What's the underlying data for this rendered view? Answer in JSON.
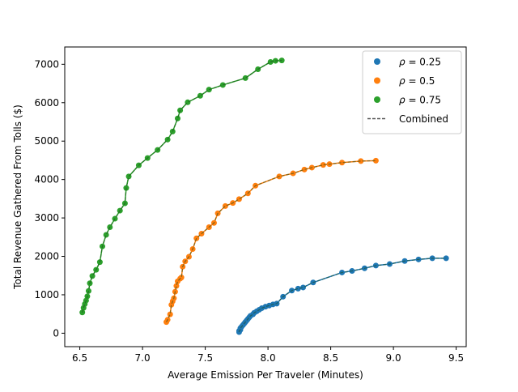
{
  "chart_data": {
    "type": "scatter",
    "title": "",
    "xlabel": "Average Emission Per Traveler (Minutes)",
    "ylabel": "Total Revenue Gathered From Tolls ($)",
    "xlim": [
      6.38,
      9.58
    ],
    "ylim": [
      -350,
      7450
    ],
    "xticks": [
      6.5,
      7.0,
      7.5,
      8.0,
      8.5,
      9.0,
      9.5
    ],
    "xtick_labels": [
      "6.5",
      "7.0",
      "7.5",
      "8.0",
      "8.5",
      "9.0",
      "9.5"
    ],
    "yticks": [
      0,
      1000,
      2000,
      3000,
      4000,
      5000,
      6000,
      7000
    ],
    "ytick_labels": [
      "0",
      "1000",
      "2000",
      "3000",
      "4000",
      "5000",
      "6000",
      "7000"
    ],
    "grid": false,
    "legend_position": "top-right",
    "legend": {
      "entries": [
        {
          "label_prefix": "ρ",
          "label_suffix": " = 0.25",
          "color": "#1f77b4",
          "marker": "circle"
        },
        {
          "label_prefix": "ρ",
          "label_suffix": " = 0.5",
          "color": "#ff7f0e",
          "marker": "circle"
        },
        {
          "label_prefix": "ρ",
          "label_suffix": " = 0.75",
          "color": "#2ca02c",
          "marker": "circle"
        },
        {
          "label": "Combined",
          "color": "#555555",
          "marker": "dashed-line"
        }
      ]
    },
    "series": [
      {
        "name": "ρ = 0.25",
        "color": "#1f77b4",
        "points": [
          [
            7.77,
            30
          ],
          [
            7.77,
            60
          ],
          [
            7.78,
            90
          ],
          [
            7.78,
            130
          ],
          [
            7.79,
            170
          ],
          [
            7.8,
            210
          ],
          [
            7.81,
            250
          ],
          [
            7.82,
            290
          ],
          [
            7.83,
            330
          ],
          [
            7.84,
            370
          ],
          [
            7.85,
            410
          ],
          [
            7.86,
            450
          ],
          [
            7.88,
            490
          ],
          [
            7.89,
            530
          ],
          [
            7.91,
            570
          ],
          [
            7.93,
            610
          ],
          [
            7.95,
            650
          ],
          [
            7.98,
            690
          ],
          [
            8.01,
            720
          ],
          [
            8.04,
            750
          ],
          [
            8.07,
            770
          ],
          [
            8.12,
            950
          ],
          [
            8.19,
            1110
          ],
          [
            8.24,
            1160
          ],
          [
            8.28,
            1190
          ],
          [
            8.36,
            1320
          ],
          [
            8.59,
            1580
          ],
          [
            8.67,
            1620
          ],
          [
            8.77,
            1690
          ],
          [
            8.86,
            1760
          ],
          [
            8.97,
            1800
          ],
          [
            9.09,
            1880
          ],
          [
            9.2,
            1920
          ],
          [
            9.31,
            1950
          ],
          [
            9.42,
            1950
          ]
        ]
      },
      {
        "name": "ρ = 0.5",
        "color": "#ff7f0e",
        "points": [
          [
            7.19,
            290
          ],
          [
            7.2,
            350
          ],
          [
            7.22,
            490
          ],
          [
            7.23,
            740
          ],
          [
            7.24,
            830
          ],
          [
            7.25,
            910
          ],
          [
            7.26,
            1080
          ],
          [
            7.27,
            1230
          ],
          [
            7.28,
            1350
          ],
          [
            7.3,
            1420
          ],
          [
            7.31,
            1450
          ],
          [
            7.32,
            1730
          ],
          [
            7.34,
            1870
          ],
          [
            7.37,
            1990
          ],
          [
            7.4,
            2190
          ],
          [
            7.43,
            2470
          ],
          [
            7.47,
            2590
          ],
          [
            7.53,
            2760
          ],
          [
            7.57,
            2870
          ],
          [
            7.6,
            3120
          ],
          [
            7.66,
            3310
          ],
          [
            7.72,
            3390
          ],
          [
            7.77,
            3490
          ],
          [
            7.84,
            3640
          ],
          [
            7.9,
            3840
          ],
          [
            8.09,
            4080
          ],
          [
            8.2,
            4160
          ],
          [
            8.29,
            4260
          ],
          [
            8.35,
            4310
          ],
          [
            8.44,
            4380
          ],
          [
            8.49,
            4400
          ],
          [
            8.59,
            4440
          ],
          [
            8.74,
            4480
          ],
          [
            8.86,
            4490
          ]
        ]
      },
      {
        "name": "ρ = 0.75",
        "color": "#2ca02c",
        "points": [
          [
            6.52,
            540
          ],
          [
            6.53,
            660
          ],
          [
            6.54,
            760
          ],
          [
            6.55,
            850
          ],
          [
            6.56,
            960
          ],
          [
            6.57,
            1100
          ],
          [
            6.58,
            1300
          ],
          [
            6.6,
            1490
          ],
          [
            6.63,
            1650
          ],
          [
            6.66,
            1850
          ],
          [
            6.68,
            2260
          ],
          [
            6.71,
            2560
          ],
          [
            6.74,
            2760
          ],
          [
            6.78,
            2980
          ],
          [
            6.82,
            3190
          ],
          [
            6.86,
            3380
          ],
          [
            6.87,
            3780
          ],
          [
            6.89,
            4080
          ],
          [
            6.97,
            4370
          ],
          [
            7.04,
            4560
          ],
          [
            7.12,
            4770
          ],
          [
            7.2,
            5040
          ],
          [
            7.24,
            5250
          ],
          [
            7.28,
            5590
          ],
          [
            7.3,
            5800
          ],
          [
            7.36,
            6010
          ],
          [
            7.46,
            6180
          ],
          [
            7.53,
            6340
          ],
          [
            7.64,
            6460
          ],
          [
            7.82,
            6640
          ],
          [
            7.92,
            6870
          ],
          [
            8.02,
            7060
          ],
          [
            8.06,
            7090
          ],
          [
            8.11,
            7100
          ]
        ]
      }
    ]
  }
}
